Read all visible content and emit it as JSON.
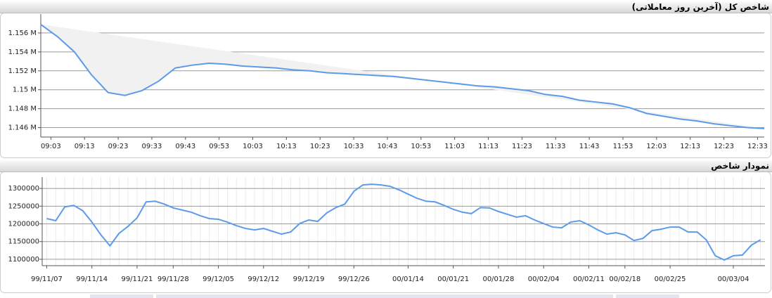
{
  "chart_data": [
    {
      "type": "line",
      "title": "شاخص کل (آخرین روز معاملاتی)",
      "x": [
        "09:00",
        "09:05",
        "09:10",
        "09:15",
        "09:20",
        "09:25",
        "09:30",
        "09:35",
        "09:40",
        "09:45",
        "09:50",
        "09:55",
        "10:00",
        "10:05",
        "10:10",
        "10:15",
        "10:20",
        "10:25",
        "10:30",
        "10:35",
        "10:40",
        "10:45",
        "10:50",
        "10:55",
        "11:00",
        "11:05",
        "11:10",
        "11:15",
        "11:20",
        "11:25",
        "11:30",
        "11:35",
        "11:40",
        "11:45",
        "11:50",
        "11:55",
        "12:00",
        "12:05",
        "12:10",
        "12:15",
        "12:20",
        "12:25",
        "12:30",
        "12:35"
      ],
      "values": [
        1156900,
        1155600,
        1154000,
        1151600,
        1149700,
        1149400,
        1149900,
        1150900,
        1152300,
        1152600,
        1152800,
        1152700,
        1152500,
        1152400,
        1152300,
        1152100,
        1152000,
        1151800,
        1151700,
        1151600,
        1151500,
        1151400,
        1151200,
        1151000,
        1150800,
        1150600,
        1150400,
        1150300,
        1150100,
        1149900,
        1149500,
        1149300,
        1148900,
        1148700,
        1148500,
        1148100,
        1147500,
        1147200,
        1146900,
        1146700,
        1146400,
        1146200,
        1146000,
        1145900
      ],
      "color": "#5b9bea",
      "area_fill": "#f1f1f1",
      "xlim": [
        "09:00",
        "12:35"
      ],
      "xticks": [
        "09:03",
        "09:13",
        "09:23",
        "09:33",
        "09:43",
        "09:53",
        "10:03",
        "10:13",
        "10:23",
        "10:33",
        "10:43",
        "10:53",
        "11:03",
        "11:13",
        "11:23",
        "11:33",
        "11:43",
        "11:53",
        "12:03",
        "12:13",
        "12:23",
        "12:33"
      ],
      "ylim": [
        1145000,
        1158000
      ],
      "yticks": [
        {
          "value": 1146000,
          "label": "1.146 M"
        },
        {
          "value": 1148000,
          "label": "1.148 M"
        },
        {
          "value": 1150000,
          "label": "1.15 M"
        },
        {
          "value": 1152000,
          "label": "1.152 M"
        },
        {
          "value": 1154000,
          "label": "1.154 M"
        },
        {
          "value": 1156000,
          "label": "1.156 M"
        }
      ],
      "grid": true
    },
    {
      "type": "line",
      "title": "نمودار شاخص",
      "categories": [
        "99/11/07",
        null,
        null,
        null,
        null,
        "99/11/14",
        null,
        null,
        null,
        null,
        "99/11/21",
        null,
        null,
        null,
        "99/11/28",
        null,
        null,
        null,
        null,
        "99/12/05",
        null,
        null,
        null,
        null,
        "99/12/12",
        null,
        null,
        null,
        null,
        "99/12/19",
        null,
        null,
        null,
        null,
        "99/12/26",
        null,
        null,
        null,
        null,
        null,
        "00/01/14",
        null,
        null,
        null,
        null,
        "00/01/21",
        null,
        null,
        null,
        null,
        "00/01/28",
        null,
        null,
        null,
        null,
        "00/02/04",
        null,
        null,
        null,
        null,
        "00/02/11",
        null,
        null,
        null,
        "00/02/18",
        null,
        null,
        null,
        null,
        "00/02/25",
        null,
        null,
        null,
        null,
        null,
        null,
        "00/03/04",
        null,
        null,
        null
      ],
      "values": [
        1215000,
        1209000,
        1248000,
        1252000,
        1237000,
        1205000,
        1169000,
        1138000,
        1173000,
        1193000,
        1217000,
        1262000,
        1264000,
        1256000,
        1245000,
        1239000,
        1233000,
        1223000,
        1215000,
        1213000,
        1205000,
        1195000,
        1187000,
        1183000,
        1187000,
        1179000,
        1171000,
        1177000,
        1201000,
        1211000,
        1207000,
        1231000,
        1246000,
        1256000,
        1292000,
        1310000,
        1312000,
        1310000,
        1306000,
        1296000,
        1284000,
        1272000,
        1264000,
        1262000,
        1252000,
        1241000,
        1233000,
        1229000,
        1246000,
        1245000,
        1235000,
        1227000,
        1219000,
        1223000,
        1211000,
        1201000,
        1191000,
        1189000,
        1205000,
        1209000,
        1197000,
        1183000,
        1171000,
        1175000,
        1169000,
        1153000,
        1159000,
        1181000,
        1185000,
        1191000,
        1191000,
        1177000,
        1177000,
        1155000,
        1110000,
        1098000,
        1110000,
        1112000,
        1140000,
        1155000
      ],
      "color": "#5b9bea",
      "ylim": [
        1082000,
        1332000
      ],
      "yticks": [
        1100000,
        1150000,
        1200000,
        1250000,
        1300000
      ],
      "grid": true,
      "x_grid": true
    }
  ]
}
